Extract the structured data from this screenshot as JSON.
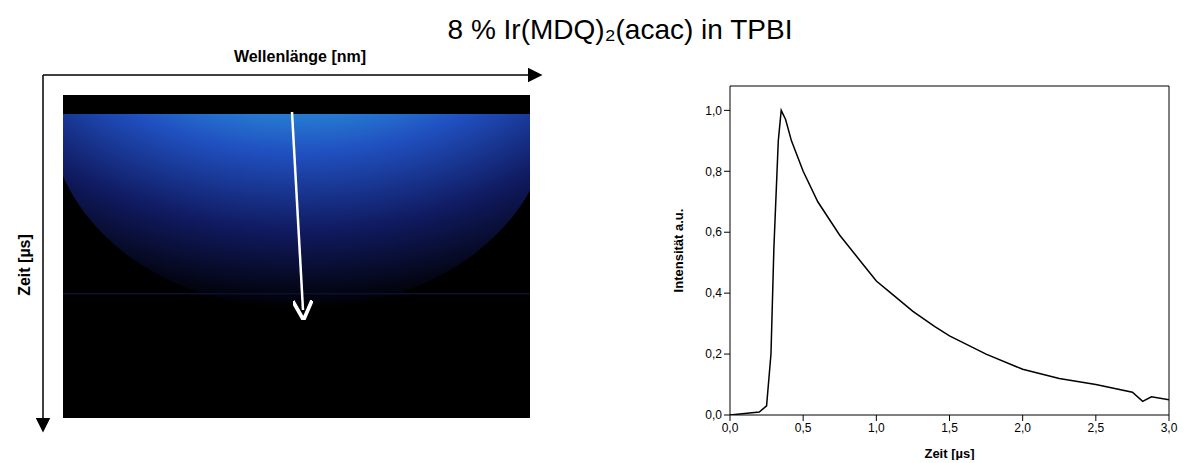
{
  "title": "8 % Ir(MDQ)₂(acac) in TPBI",
  "streak_image": {
    "x_label": "Wellenlänge [nm]",
    "y_label": "Zeit [µs]"
  },
  "chart_data": {
    "type": "line",
    "x_label": "Zeit [µs]",
    "y_label": "Intensität a.u.",
    "x": [
      0,
      0.1,
      0.2,
      0.25,
      0.28,
      0.3,
      0.33,
      0.35,
      0.38,
      0.42,
      0.5,
      0.6,
      0.75,
      0.9,
      1.0,
      1.1,
      1.25,
      1.4,
      1.5,
      1.75,
      2.0,
      2.25,
      2.5,
      2.75,
      2.82,
      2.88,
      3.0
    ],
    "values": [
      0,
      0.005,
      0.01,
      0.03,
      0.2,
      0.55,
      0.9,
      1.0,
      0.97,
      0.9,
      0.8,
      0.7,
      0.59,
      0.5,
      0.44,
      0.4,
      0.34,
      0.29,
      0.26,
      0.2,
      0.15,
      0.12,
      0.1,
      0.075,
      0.045,
      0.06,
      0.05
    ],
    "color": "#000000",
    "xlim": [
      0,
      3
    ],
    "ylim": [
      0,
      1.08
    ],
    "xticks": [
      {
        "value": 0,
        "label": "0,0"
      },
      {
        "value": 0.5,
        "label": "0,5"
      },
      {
        "value": 1,
        "label": "1,0"
      },
      {
        "value": 1.5,
        "label": "1,5"
      },
      {
        "value": 2,
        "label": "2,0"
      },
      {
        "value": 2.5,
        "label": "2,5"
      },
      {
        "value": 3,
        "label": "3,0"
      }
    ],
    "yticks": [
      {
        "value": 0,
        "label": "0,0"
      },
      {
        "value": 0.2,
        "label": "0,2"
      },
      {
        "value": 0.4,
        "label": "0,4"
      },
      {
        "value": 0.6,
        "label": "0,6"
      },
      {
        "value": 0.8,
        "label": "0,8"
      },
      {
        "value": 1,
        "label": "1,0"
      }
    ],
    "grid": false
  }
}
